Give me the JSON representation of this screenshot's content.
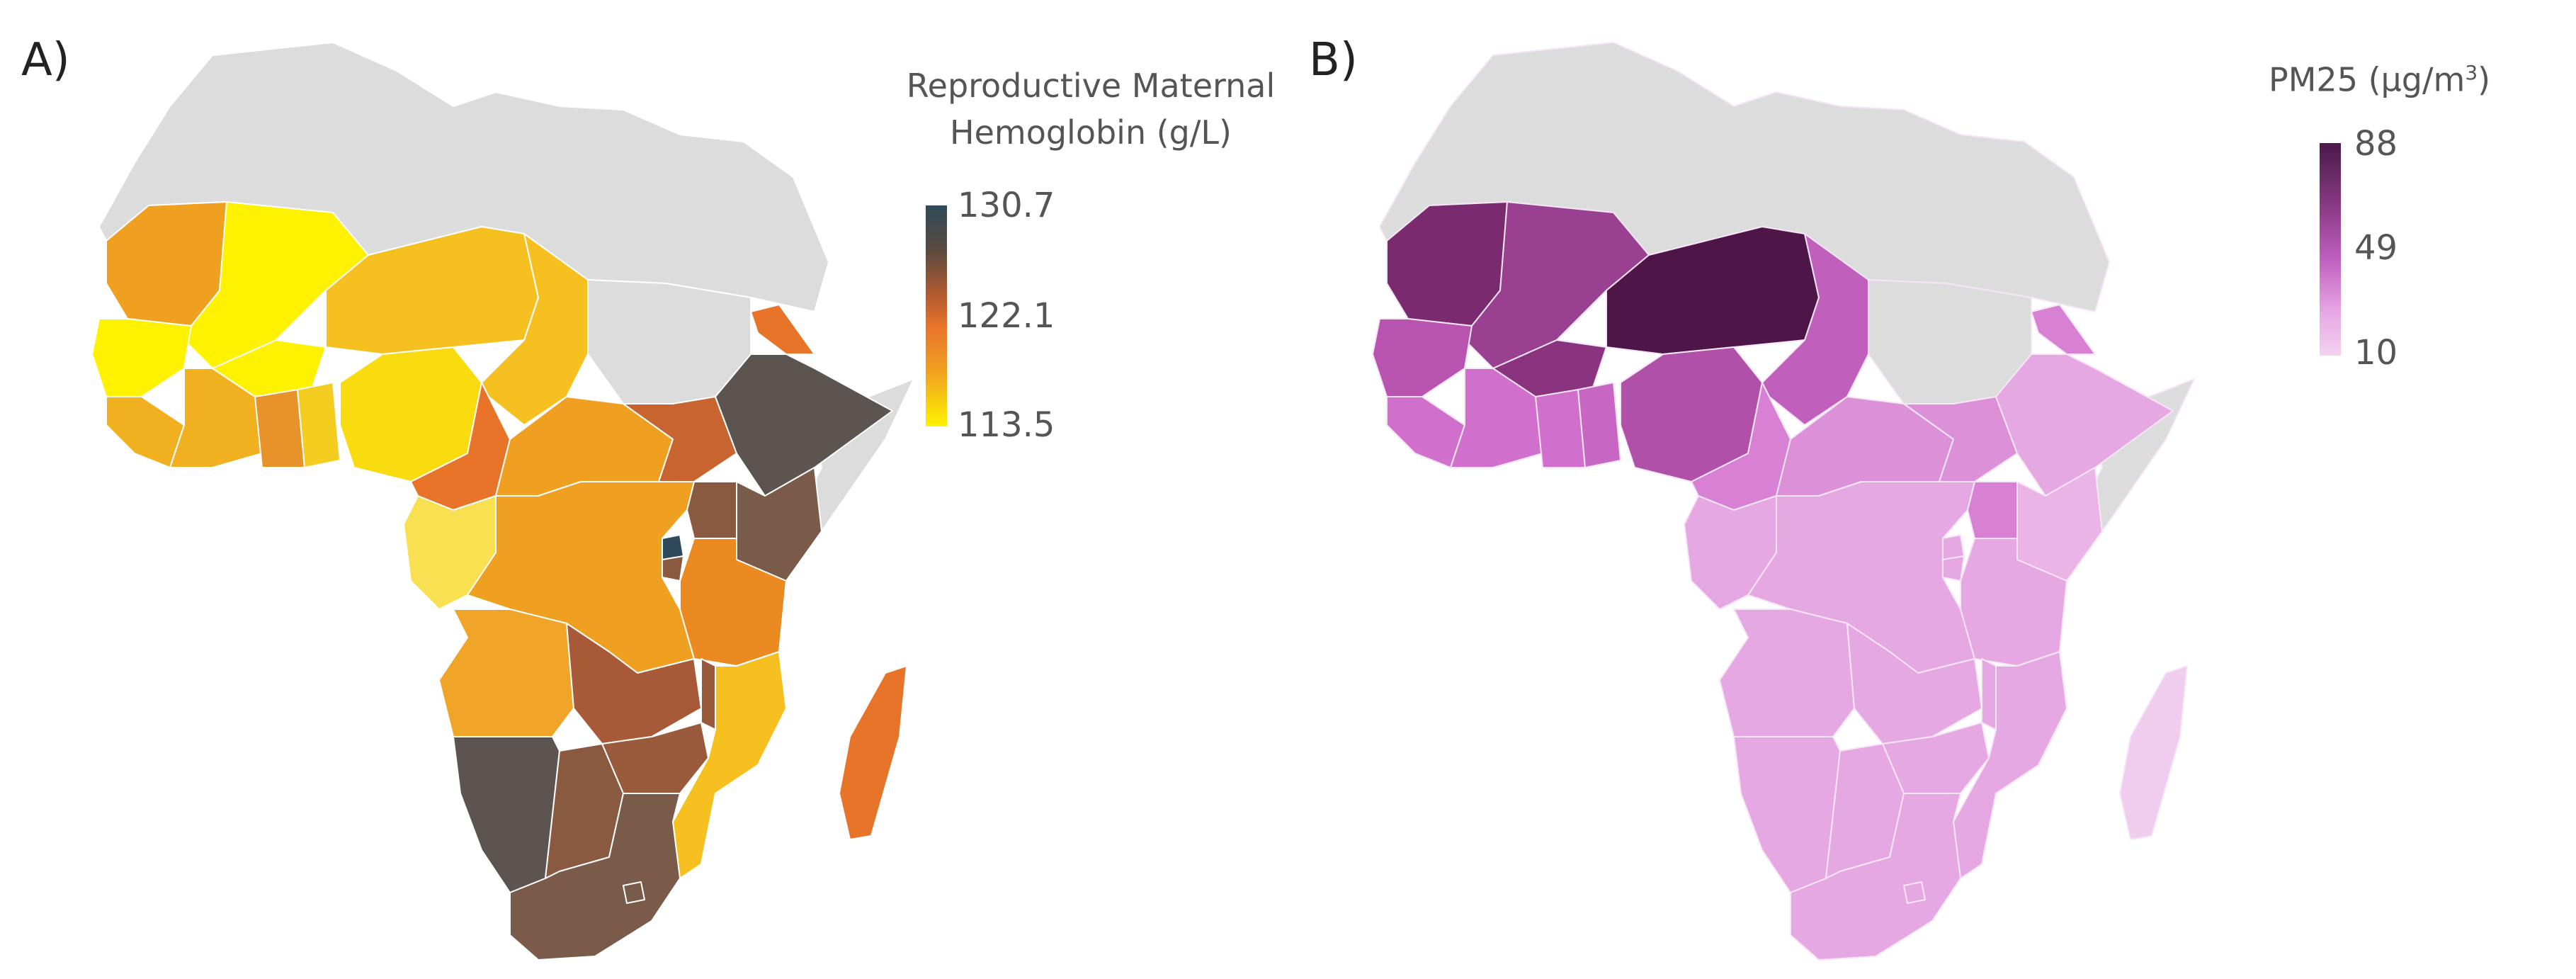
{
  "panels": [
    {
      "label": "A)",
      "legend": {
        "title_line1": "Reproductive Maternal",
        "title_line2": "Hemoglobin (g/L)",
        "ticks": [
          "130.7",
          "122.1",
          "113.5"
        ],
        "colors": [
          "#2e4a5a",
          "#b05a30",
          "#f0a020",
          "#fff200"
        ]
      }
    },
    {
      "label": "B)",
      "legend": {
        "title_main": "PM25 (µg/m",
        "title_sup": "3",
        "title_end": ")",
        "ticks": [
          "88",
          "49",
          "10"
        ],
        "colors": [
          "#4a1a48",
          "#c060c0",
          "#f3d2f0"
        ]
      }
    }
  ],
  "chart_data": [
    {
      "type": "choropleth",
      "title": "Reproductive Maternal Hemoglobin (g/L)",
      "region": "Africa",
      "scale": {
        "min": 113.5,
        "mid": 122.1,
        "max": 130.7
      },
      "no_data_color": "#dcdcdc"
    },
    {
      "type": "choropleth",
      "title": "PM25 (µg/m3)",
      "region": "Africa",
      "scale": {
        "min": 10,
        "mid": 49,
        "max": 88
      },
      "no_data_color": "#dcdcdc"
    }
  ]
}
